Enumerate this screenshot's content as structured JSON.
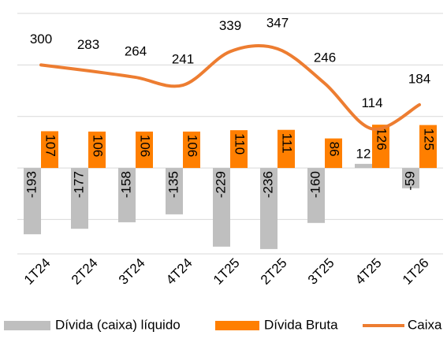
{
  "chart_data": {
    "type": "bar_line",
    "categories": [
      "1T24",
      "2T24",
      "3T24",
      "4T24",
      "1T25",
      "2T25",
      "3T25",
      "4T25",
      "1T26"
    ],
    "series": [
      {
        "name": "Dívida (caixa) líquido",
        "color": "#bfbfbf",
        "type": "bar",
        "values": [
          -193,
          -177,
          -158,
          -135,
          -229,
          -236,
          -160,
          12,
          -59
        ]
      },
      {
        "name": "Dívida Bruta",
        "color": "#ff7f00",
        "type": "bar",
        "values": [
          107,
          106,
          106,
          106,
          110,
          111,
          86,
          126,
          125
        ]
      },
      {
        "name": "Caixa",
        "color": "#ed7d31",
        "type": "line",
        "values": [
          300,
          283,
          264,
          241,
          339,
          347,
          246,
          114,
          184
        ]
      }
    ],
    "ylim": [
      -250,
      450
    ],
    "yticks": [
      -250,
      -150,
      0,
      150,
      300,
      450
    ],
    "grid": true
  }
}
